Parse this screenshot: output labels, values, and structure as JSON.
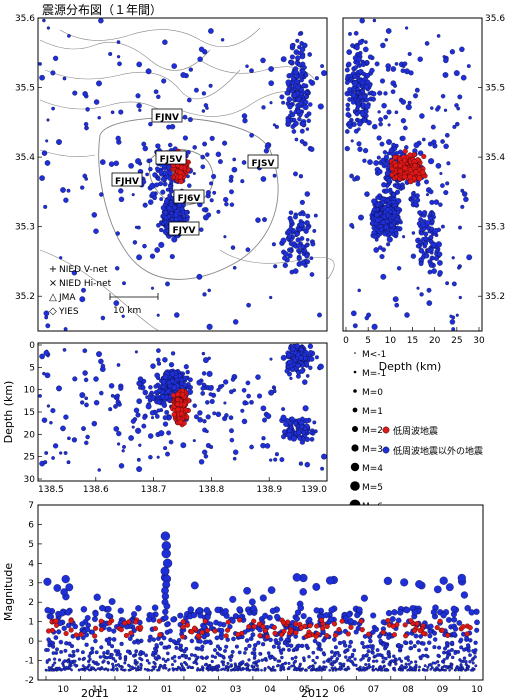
{
  "title": "震源分布図（１年間）",
  "colors": {
    "low_freq": "#e01818",
    "other": "#1f2fd8",
    "outline": "#000000",
    "topo": "#888888"
  },
  "map": {
    "xticks": [
      "138.5",
      "138.6",
      "138.7",
      "138.8",
      "138.9",
      "139.0"
    ],
    "yticks": [
      "35.2",
      "35.3",
      "35.4",
      "35.5",
      "35.6"
    ],
    "station_labels": [
      "FJNV",
      "FJ5V",
      "FJSV",
      "FJHV",
      "FJ6V",
      "FJYV"
    ],
    "network_legend": [
      "NIED V-net",
      "NIED Hi-net",
      "JMA",
      "YIES"
    ],
    "network_icons": [
      "plus-icon",
      "cross-icon",
      "triangle-icon",
      "diamond-icon"
    ],
    "scale_label": "10 km"
  },
  "depth_panel": {
    "xlabel": "Depth (km)",
    "xticks": [
      "0",
      "5",
      "10",
      "15",
      "20",
      "25",
      "30"
    ],
    "yticks": [
      "35.2",
      "35.3",
      "35.4",
      "35.5",
      "35.6"
    ]
  },
  "cross_section": {
    "ylabel": "Depth (km)",
    "yticks": [
      "0",
      "5",
      "10",
      "15",
      "20",
      "25",
      "30"
    ],
    "xticks": [
      "138.5",
      "138.6",
      "138.7",
      "138.8",
      "138.9",
      "139.0"
    ]
  },
  "legend": {
    "magnitudes": [
      "M<-1",
      "M=-1",
      "M=0",
      "M=1",
      "M=2",
      "M=3",
      "M=4",
      "M=5",
      "M=6"
    ],
    "low_freq_label": "低周波地震",
    "other_label": "低周波地震以外の地震"
  },
  "timeline": {
    "ylabel": "Magnitude",
    "yticks": [
      "7",
      "6",
      "5",
      "4",
      "3",
      "2",
      "1",
      "0",
      "-1",
      "-2"
    ],
    "months": [
      "10",
      "11",
      "12",
      "01",
      "02",
      "03",
      "04",
      "05",
      "06",
      "07",
      "08",
      "09",
      "10"
    ],
    "years": [
      "2011",
      "2012"
    ]
  },
  "chart_data": {
    "type": "scatter",
    "series": [
      {
        "name": "低周波地震",
        "color": "#e01818",
        "lon_range": [
          138.73,
          138.77
        ],
        "lat_range": [
          35.36,
          35.42
        ],
        "depth_range_km": [
          10,
          27
        ]
      },
      {
        "name": "低周波地震以外の地震",
        "color": "#1f2fd8",
        "lon_range": [
          138.5,
          139.0
        ],
        "lat_range": [
          35.15,
          35.6
        ],
        "depth_range_km": [
          0,
          30
        ]
      }
    ],
    "map_xlim": [
      138.5,
      139.0
    ],
    "map_ylim": [
      35.15,
      35.6
    ],
    "depth_xlim": [
      0,
      30
    ],
    "cross_section_ylim": [
      0,
      30
    ],
    "magnitude_ylim": [
      -2,
      7
    ],
    "time_range": [
      "2011-10",
      "2012-10"
    ],
    "max_magnitude": 5.4,
    "max_magnitude_month": "2012-01"
  }
}
